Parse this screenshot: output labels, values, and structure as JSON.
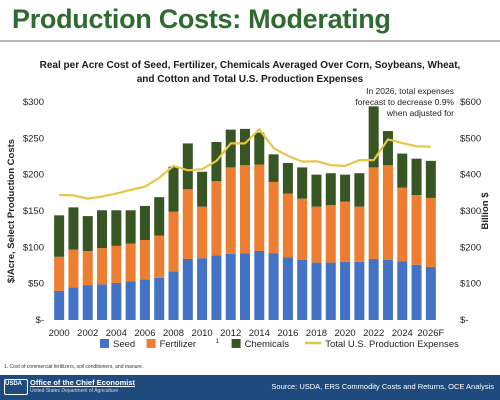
{
  "slide": {
    "title": "Production Costs: Moderating",
    "footnote": "1. Cost of commercial fertilizers, soil conditioners, and manure.",
    "logo_text": "USDA",
    "office": "Office of the Chief Economist",
    "department": "United States Department of Agriculture",
    "source": "Source: USDA, ERS Commodity Costs and Returns, OCE Analysis"
  },
  "chart_data": {
    "type": "bar",
    "stacked": true,
    "title": "Real per Acre Cost of Seed, Fertilizer, Chemicals Averaged Over Corn, Soybeans, Wheat, and Cotton and Total U.S. Production Expenses",
    "annotation": "In 2026, total expenses forecast to decrease 0.9% when adjusted for",
    "ylabel_left": "$/Acre, Select Production Costs",
    "ylabel_right": "Billion $",
    "ylim_left": [
      0,
      300
    ],
    "ylim_right": [
      0,
      600
    ],
    "y_ticks_left": [
      "$-",
      "$50",
      "$100",
      "$150",
      "$200",
      "$250",
      "$300"
    ],
    "y_ticks_right": [
      "$-",
      "$100",
      "$200",
      "$300",
      "$400",
      "$500",
      "$600"
    ],
    "x_ticks": [
      "2000",
      "2002",
      "2004",
      "2006",
      "2008",
      "2010",
      "2012",
      "2014",
      "2016",
      "2018",
      "2020",
      "2022",
      "2024",
      "2026F"
    ],
    "categories": [
      "2000",
      "2001",
      "2002",
      "2003",
      "2004",
      "2005",
      "2006",
      "2007",
      "2008",
      "2009",
      "2010",
      "2011",
      "2012",
      "2013",
      "2014",
      "2015",
      "2016",
      "2017",
      "2018",
      "2019",
      "2020",
      "2021",
      "2022",
      "2023",
      "2024",
      "2025",
      "2026F"
    ],
    "series": [
      {
        "name": "Seed",
        "color": "#4472c4",
        "values": [
          40,
          45,
          48,
          49,
          51,
          53,
          56,
          58,
          67,
          84,
          85,
          89,
          91,
          92,
          95,
          92,
          86,
          83,
          79,
          79,
          80,
          80,
          84,
          83,
          81,
          76,
          73
        ]
      },
      {
        "name": "Fertilizer",
        "superscript": "1",
        "color": "#ed7d31",
        "values": [
          47,
          52,
          47,
          50,
          51,
          52,
          54,
          58,
          82,
          96,
          71,
          102,
          119,
          121,
          119,
          98,
          88,
          84,
          77,
          79,
          83,
          76,
          126,
          130,
          101,
          96,
          95
        ]
      },
      {
        "name": "Chemicals",
        "color": "#375623",
        "values": [
          57,
          58,
          48,
          52,
          49,
          46,
          47,
          53,
          62,
          63,
          48,
          54,
          52,
          50,
          44,
          38,
          42,
          43,
          44,
          44,
          37,
          46,
          84,
          47,
          47,
          50,
          51
        ]
      }
    ],
    "line": {
      "name": "Total U.S. Production Expenses",
      "color": "#e8c547",
      "axis": "right",
      "values": [
        344,
        343,
        334,
        340,
        348,
        358,
        367,
        391,
        424,
        412,
        415,
        438,
        486,
        486,
        525,
        473,
        452,
        436,
        437,
        426,
        424,
        440,
        440,
        497,
        487,
        478,
        477
      ]
    },
    "legend_position": "bottom",
    "grid": false
  }
}
